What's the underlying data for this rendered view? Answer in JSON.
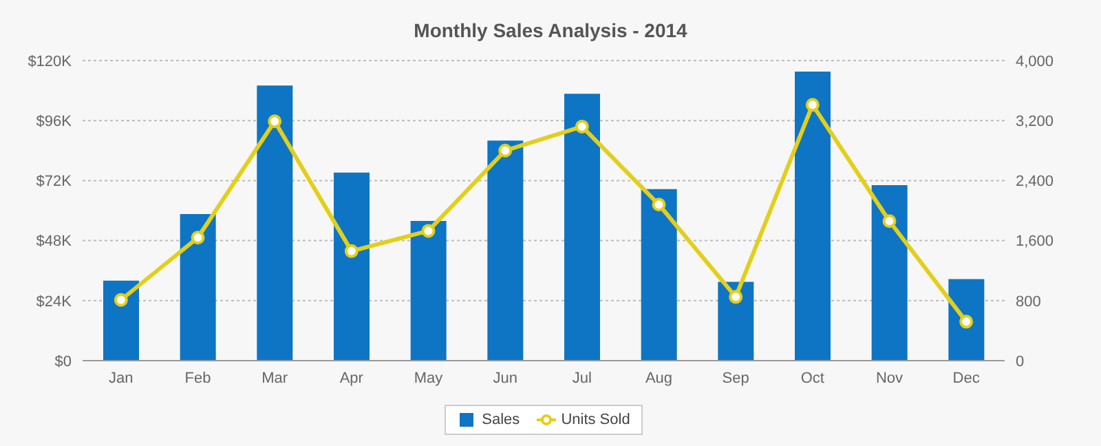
{
  "chart_data": {
    "type": "bar",
    "title": "Monthly Sales Analysis - 2014",
    "categories": [
      "Jan",
      "Feb",
      "Mar",
      "Apr",
      "May",
      "Jun",
      "Jul",
      "Aug",
      "Sep",
      "Oct",
      "Nov",
      "Dec"
    ],
    "series": [
      {
        "name": "Sales",
        "color": "#0e75c4",
        "values": [
          32000,
          58600,
          110000,
          75200,
          55900,
          88000,
          106700,
          68600,
          31500,
          115600,
          70200,
          32600
        ]
      },
      {
        "name": "Units Sold",
        "type": "line",
        "axis": "y2",
        "color": "#e3cf1b",
        "values": [
          810,
          1640,
          3190,
          1460,
          1730,
          2800,
          3120,
          2080,
          850,
          3410,
          1860,
          520
        ]
      }
    ],
    "ylim": [
      0,
      120000
    ],
    "yticks": [
      {
        "value": 0,
        "label": "$0"
      },
      {
        "value": 24000,
        "label": "$24K"
      },
      {
        "value": 48000,
        "label": "$48K"
      },
      {
        "value": 72000,
        "label": "$72K"
      },
      {
        "value": 96000,
        "label": "$96K"
      },
      {
        "value": 120000,
        "label": "$120K"
      }
    ],
    "y2lim": [
      0,
      4000
    ],
    "y2ticks": [
      0,
      800,
      {
        "value": 1600,
        "label": "1,600"
      },
      {
        "value": 2400,
        "label": "2,400"
      },
      {
        "value": 3200,
        "label": "3,200"
      },
      {
        "value": 4000,
        "label": "4,000"
      }
    ],
    "grid": "y",
    "legend": "bottom",
    "marker": "circle"
  }
}
